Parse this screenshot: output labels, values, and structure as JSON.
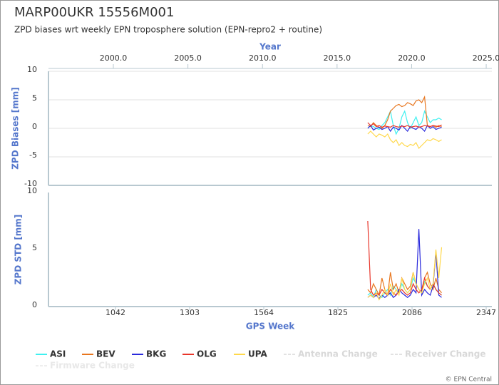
{
  "chart_data": [
    {
      "type": "line",
      "title": "MARP00UKR 15556M001",
      "subtitle": "ZPD biases wrt weekly EPN troposphere solution (EPN-repro2 + routine)",
      "x2label": "Year",
      "x2lim": [
        1995.65,
        2025.38
      ],
      "x2ticks": [
        {
          "value": 2000,
          "label": "2000.0"
        },
        {
          "value": 2005,
          "label": "2005.0"
        },
        {
          "value": 2010,
          "label": "2010.0"
        },
        {
          "value": 2015,
          "label": "2015.0"
        },
        {
          "value": 2020,
          "label": "2020.0"
        },
        {
          "value": 2025,
          "label": "2025.0"
        }
      ],
      "ylabel": "ZPD Biases [mm]",
      "ylim": [
        -10,
        10
      ],
      "yticks": [
        -10,
        -5,
        0,
        5,
        10
      ],
      "grid": true,
      "xlim": [
        806,
        2367
      ],
      "x": [
        1930,
        1940,
        1950,
        1960,
        1970,
        1980,
        1990,
        2000,
        2010,
        2020,
        2030,
        2040,
        2050,
        2060,
        2070,
        2080,
        2090,
        2100,
        2110,
        2120,
        2130,
        2140,
        2150,
        2160,
        2170,
        2180,
        2190
      ],
      "series": [
        {
          "name": "ASI",
          "color": "#3ff0f0",
          "values": [
            0,
            0.5,
            0.3,
            0,
            -0.2,
            0.5,
            1,
            2,
            3,
            0.5,
            -1,
            0,
            2,
            3,
            1,
            0,
            1,
            2,
            0.5,
            1,
            3,
            2,
            1,
            1.5,
            1.5,
            1.8,
            1.5
          ]
        },
        {
          "name": "BEV",
          "color": "#e8761e",
          "values": [
            0.5,
            0.3,
            1,
            0.5,
            0.2,
            0,
            0.5,
            1.5,
            3,
            3.5,
            4,
            4.2,
            3.8,
            4,
            4.5,
            4.3,
            4,
            4.8,
            5,
            4.5,
            5.5,
            0.5,
            0.3,
            0.5,
            0.2,
            0.5,
            0.3
          ]
        },
        {
          "name": "BKG",
          "color": "#2a2adc",
          "values": [
            0,
            0.5,
            -0.3,
            0,
            0.2,
            -0.2,
            0,
            0.3,
            -0.5,
            0.2,
            0,
            -0.3,
            0.5,
            0,
            -0.5,
            0.3,
            0,
            -0.2,
            0.3,
            0,
            -0.5,
            0.5,
            0,
            0.3,
            -0.2,
            0,
            0.2
          ]
        },
        {
          "name": "OLG",
          "color": "#e8352a",
          "values": [
            1,
            0.5,
            0.8,
            0.3,
            0.5,
            0.2,
            0.4,
            0.3,
            0.2,
            0.5,
            0.3,
            0.2,
            0.4,
            0.3,
            0.5,
            0.2,
            0.3,
            0.4,
            0.2,
            0.3,
            0.5,
            0.4,
            0.3,
            0.5,
            0.4,
            0.3,
            0.6
          ]
        },
        {
          "name": "UPA",
          "color": "#ffd84a",
          "values": [
            -1,
            -0.5,
            -1,
            -1.5,
            -1,
            -1.2,
            -1.5,
            -1,
            -2,
            -2.5,
            -2,
            -3,
            -2.5,
            -3,
            -3.2,
            -2.8,
            -3,
            -2.5,
            -3.5,
            -3,
            -2.5,
            -2,
            -2.2,
            -1.8,
            -2,
            -2.3,
            -2
          ]
        }
      ]
    },
    {
      "type": "line",
      "xlabel": "GPS Week",
      "xlim": [
        806,
        2367
      ],
      "xticks": [
        1042,
        1303,
        1564,
        1825,
        2086,
        2347
      ],
      "ylabel": "ZPD STD [mm]",
      "ylim": [
        0,
        10
      ],
      "yticks": [
        0,
        5,
        10
      ],
      "grid": false,
      "x": [
        1930,
        1940,
        1950,
        1960,
        1970,
        1980,
        1990,
        2000,
        2010,
        2020,
        2030,
        2040,
        2050,
        2060,
        2070,
        2080,
        2090,
        2100,
        2110,
        2120,
        2130,
        2140,
        2150,
        2160,
        2170,
        2180,
        2190
      ],
      "series": [
        {
          "name": "ASI",
          "color": "#3ff0f0",
          "values": [
            1,
            1.2,
            0.8,
            1.5,
            1,
            0.8,
            1.2,
            1.5,
            1,
            1.8,
            1.5,
            1.2,
            2,
            1.5,
            1.2,
            1.5,
            2.5,
            2,
            1.5,
            1.2,
            2.2,
            1.8,
            1.5,
            2,
            1.5,
            1.2,
            1
          ]
        },
        {
          "name": "BEV",
          "color": "#e8761e",
          "values": [
            1.5,
            1.2,
            2,
            1.5,
            1,
            2.5,
            1.5,
            1,
            3,
            1.5,
            2,
            1.2,
            2.5,
            2,
            1.5,
            1.8,
            3,
            2,
            1.5,
            1.2,
            2.5,
            3,
            2,
            1.5,
            2.5,
            1.5,
            1.2
          ]
        },
        {
          "name": "BKG",
          "color": "#2a2adc",
          "values": [
            0.8,
            1,
            0.8,
            1,
            0.7,
            1,
            0.8,
            1,
            1.2,
            0.8,
            1,
            1.5,
            1.2,
            1,
            0.8,
            1,
            1.5,
            1.2,
            6.8,
            1,
            1.5,
            1.2,
            1,
            1.8,
            4.8,
            1,
            0.8
          ]
        },
        {
          "name": "OLG",
          "color": "#e8352a",
          "values": [
            7.5,
            1.5,
            1,
            1.2,
            1,
            1.5,
            1.2,
            1,
            1.5,
            1.2,
            1,
            1.3,
            1.5,
            1.2,
            1,
            1.2,
            2,
            1.5,
            1.2,
            1.5,
            2.5,
            1.8,
            1.5,
            2,
            1.5,
            1.2,
            1
          ]
        },
        {
          "name": "UPA",
          "color": "#ffd84a",
          "values": [
            0.8,
            1,
            0.8,
            1.2,
            0.6,
            1,
            1.5,
            1,
            2,
            1,
            1.5,
            1,
            2.5,
            1.5,
            1.2,
            1.5,
            3,
            2,
            1.5,
            1.2,
            2,
            2.5,
            1.5,
            2,
            5,
            2.5,
            5.2
          ]
        }
      ]
    }
  ],
  "change_markers": [
    {
      "name": "Antenna Change",
      "color": "#d8d8d8"
    },
    {
      "name": "Receiver Change",
      "color": "#d8d8d8"
    },
    {
      "name": "Firmware Change",
      "color": "#e8e8e8"
    }
  ],
  "credit": "© EPN Central"
}
